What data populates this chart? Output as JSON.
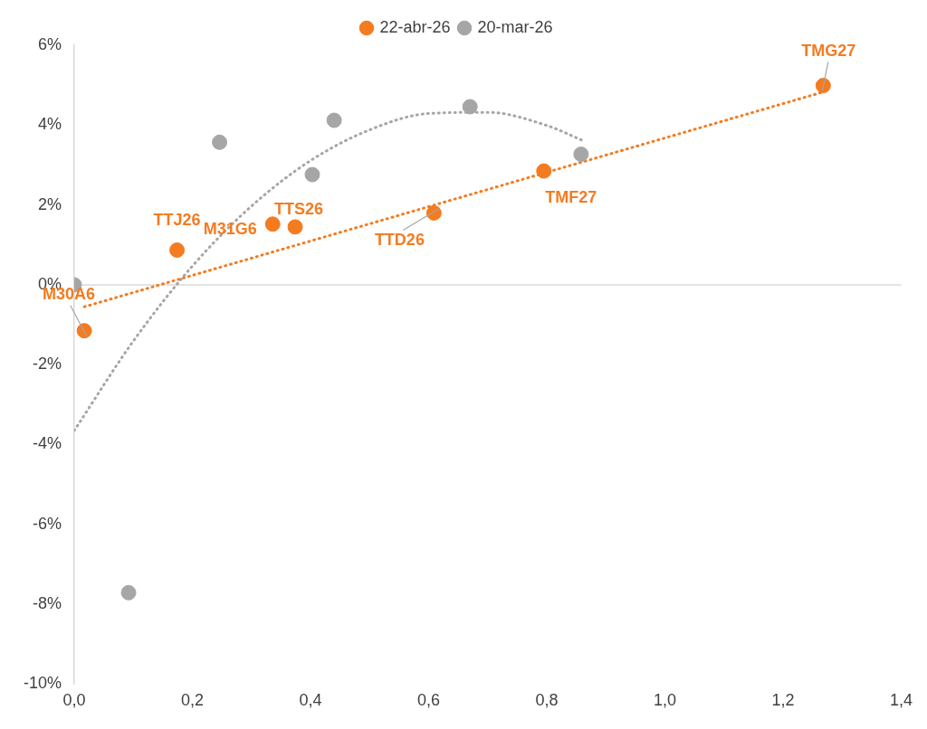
{
  "chart_data": {
    "type": "scatter",
    "legend": "top",
    "grid": false,
    "ref_lines": [
      {
        "axis": "y",
        "value": 0,
        "color": "#d9d9d9"
      }
    ],
    "series": [
      {
        "name": "22-abr-26",
        "color": "#f47b20",
        "marker": "circle",
        "x": [
          0.017,
          0.174,
          0.336,
          0.374,
          0.609,
          0.795,
          1.268
        ],
        "values": [
          -1.15,
          0.87,
          1.52,
          1.45,
          1.8,
          2.85,
          4.99
        ]
      },
      {
        "name": "20-mar-26",
        "color": "#a6a6a6",
        "marker": "circle",
        "x": [
          0,
          0.092,
          0.246,
          0.403,
          0.44,
          0.67,
          0.858
        ],
        "values": [
          0,
          -7.71,
          3.57,
          2.76,
          4.12,
          4.46,
          3.27
        ]
      },
      {
        "type": "line",
        "color": "#f47b20",
        "line_style": "dotted",
        "marker": "none",
        "x": [
          0.017,
          1.268
        ],
        "values": [
          -0.55,
          4.83
        ]
      },
      {
        "type": "line",
        "color": "#a6a6a6",
        "line_style": "dotted",
        "marker": "none",
        "x": [
          0,
          0.1,
          0.2,
          0.3,
          0.4,
          0.5,
          0.6,
          0.7,
          0.8,
          0.86
        ],
        "values": [
          -3.65,
          -1.41,
          0.47,
          1.97,
          3.11,
          3.88,
          4.29,
          4.32,
          3.99,
          3.62
        ]
      }
    ],
    "annotations": [
      {
        "text": "M30A6",
        "x": 0.017,
        "y": -1.15
      },
      {
        "text": "TTJ26",
        "x": 0.174,
        "y": 0.87
      },
      {
        "text": "M31G6",
        "x": 0.336,
        "y": 1.52
      },
      {
        "text": "TTS26",
        "x": 0.374,
        "y": 1.45
      },
      {
        "text": "TTD26",
        "x": 0.609,
        "y": 1.8
      },
      {
        "text": "TMF27",
        "x": 0.795,
        "y": 2.85
      },
      {
        "text": "TMG27",
        "x": 1.268,
        "y": 4.99
      }
    ],
    "xlim": [
      0,
      1.4
    ],
    "xticks": [
      {
        "value": 0,
        "label": "0,0"
      },
      {
        "value": 0.2,
        "label": "0,2"
      },
      {
        "value": 0.4,
        "label": "0,4"
      },
      {
        "value": 0.6,
        "label": "0,6"
      },
      {
        "value": 0.8,
        "label": "0,8"
      },
      {
        "value": 1,
        "label": "1,0"
      },
      {
        "value": 1.2,
        "label": "1,2"
      },
      {
        "value": 1.4,
        "label": "1,4"
      }
    ],
    "ylim": [
      -10,
      6
    ],
    "yticks": [
      {
        "value": -10,
        "label": "-10%"
      },
      {
        "value": -8,
        "label": "-8%"
      },
      {
        "value": -6,
        "label": "-6%"
      },
      {
        "value": -4,
        "label": "-4%"
      },
      {
        "value": -2,
        "label": "-2%"
      },
      {
        "value": 0,
        "label": "0%"
      },
      {
        "value": 2,
        "label": "2%"
      },
      {
        "value": 4,
        "label": "4%"
      },
      {
        "value": 6,
        "label": "6%"
      }
    ]
  }
}
